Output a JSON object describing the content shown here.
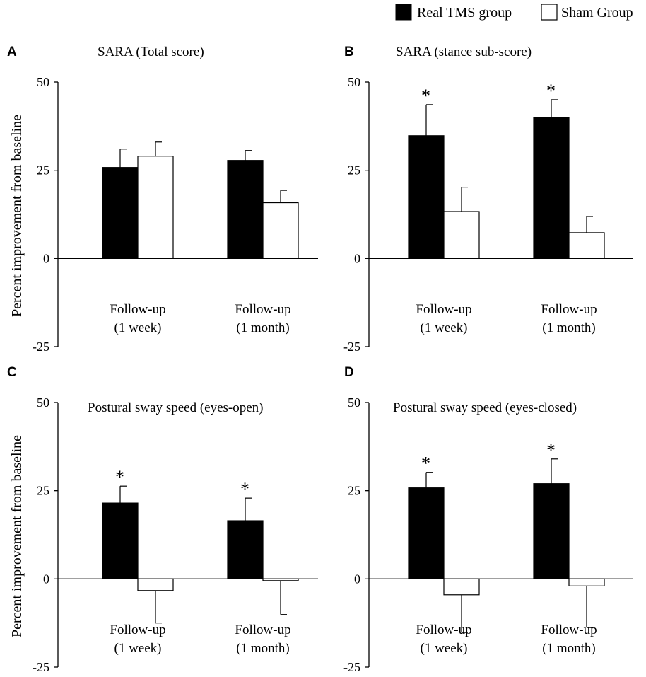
{
  "legend": [
    {
      "label": "Real TMS group",
      "color": "#000000"
    },
    {
      "label": "Sham Group",
      "color": "#ffffff"
    }
  ],
  "ylabel": "Percent improvement from baseline",
  "chart_data": [
    {
      "type": "bar",
      "panel": "A",
      "title": "SARA (Total score)",
      "categories": [
        [
          "Follow-up",
          "(1 week)"
        ],
        [
          "Follow-up",
          "(1 month)"
        ]
      ],
      "ylim": [
        -25,
        50
      ],
      "yticks": [
        -25,
        0,
        25,
        50
      ],
      "ylabel": "Percent improvement from baseline",
      "grid": false,
      "legend_position": "top-right",
      "series": [
        {
          "name": "Real TMS group",
          "values": [
            25.8,
            27.8
          ],
          "errors": [
            5.2,
            2.8
          ],
          "significant": [
            false,
            false
          ]
        },
        {
          "name": "Sham Group",
          "values": [
            29.0,
            15.8
          ],
          "errors": [
            4.0,
            3.5
          ],
          "significant": [
            false,
            false
          ]
        }
      ]
    },
    {
      "type": "bar",
      "panel": "B",
      "title": "SARA (stance sub-score)",
      "categories": [
        [
          "Follow-up",
          "(1 week)"
        ],
        [
          "Follow-up",
          "(1 month)"
        ]
      ],
      "ylim": [
        -25,
        50
      ],
      "yticks": [
        -25,
        0,
        25,
        50
      ],
      "grid": false,
      "series": [
        {
          "name": "Real TMS group",
          "values": [
            34.8,
            40.0
          ],
          "errors": [
            8.8,
            5.0
          ],
          "significant": [
            true,
            true
          ]
        },
        {
          "name": "Sham Group",
          "values": [
            13.3,
            7.3
          ],
          "errors": [
            6.9,
            4.6
          ],
          "significant": [
            false,
            false
          ]
        }
      ]
    },
    {
      "type": "bar",
      "panel": "C",
      "title": "Postural sway speed (eyes-open)",
      "categories": [
        [
          "Follow-up",
          "(1 week)"
        ],
        [
          "Follow-up",
          "(1 month)"
        ]
      ],
      "ylim": [
        -25,
        50
      ],
      "yticks": [
        -25,
        0,
        25,
        50
      ],
      "ylabel": "Percent improvement from baseline",
      "grid": false,
      "series": [
        {
          "name": "Real TMS group",
          "values": [
            21.5,
            16.5
          ],
          "errors": [
            4.8,
            6.4
          ],
          "significant": [
            true,
            true
          ]
        },
        {
          "name": "Sham Group",
          "values": [
            -3.3,
            -0.5
          ],
          "errors": [
            9.2,
            9.6
          ],
          "significant": [
            false,
            false
          ]
        }
      ]
    },
    {
      "type": "bar",
      "panel": "D",
      "title": "Postural sway speed (eyes-closed)",
      "categories": [
        [
          "Follow-up",
          "(1 week)"
        ],
        [
          "Follow-up",
          "(1 month)"
        ]
      ],
      "ylim": [
        -25,
        50
      ],
      "yticks": [
        -25,
        0,
        25,
        50
      ],
      "grid": false,
      "series": [
        {
          "name": "Real TMS group",
          "values": [
            25.8,
            27.0
          ],
          "errors": [
            4.4,
            7.0
          ],
          "significant": [
            true,
            true
          ]
        },
        {
          "name": "Sham Group",
          "values": [
            -4.5,
            -2.0
          ],
          "errors": [
            10.7,
            11.8
          ],
          "significant": [
            false,
            false
          ]
        }
      ]
    }
  ],
  "significance_marker": "*"
}
